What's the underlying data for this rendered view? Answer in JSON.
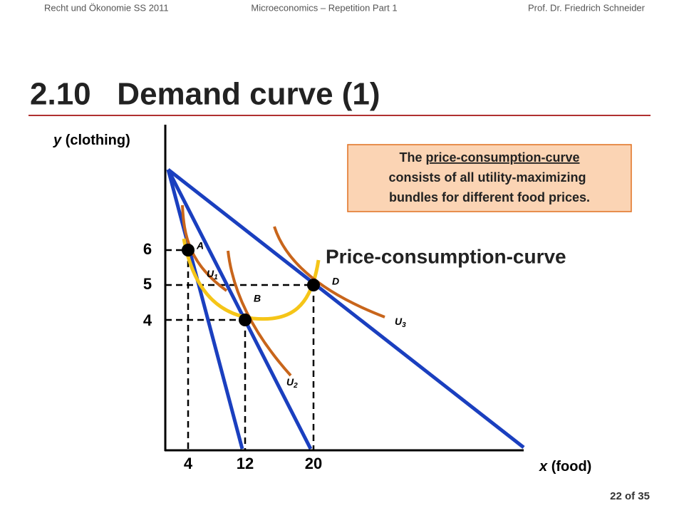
{
  "header": {
    "left": "Recht und Ökonomie SS 2011",
    "center": "Microeconomics – Repetition Part 1",
    "right": "Prof. Dr. Friedrich Schneider"
  },
  "title": "2.10   Demand curve (1)",
  "diagram": {
    "y_axis": {
      "variable": "y",
      "label": "(clothing)",
      "ticks": [
        6,
        5,
        4
      ]
    },
    "x_axis": {
      "variable": "x",
      "label": "(food)",
      "ticks": [
        4,
        12,
        20
      ]
    },
    "points": [
      "A",
      "B",
      "D"
    ],
    "curves": [
      {
        "letter": "U",
        "sub": "1"
      },
      {
        "letter": "U",
        "sub": "2"
      },
      {
        "letter": "U",
        "sub": "3"
      }
    ],
    "pcc_label": "Price-consumption-curve",
    "note": {
      "lead": "The",
      "underlined": "price-consumption-curve",
      "lines": [
        "consists of all utility-maximizing",
        "bundles for different food prices."
      ]
    }
  },
  "footer": {
    "page": "22 of 35"
  }
}
